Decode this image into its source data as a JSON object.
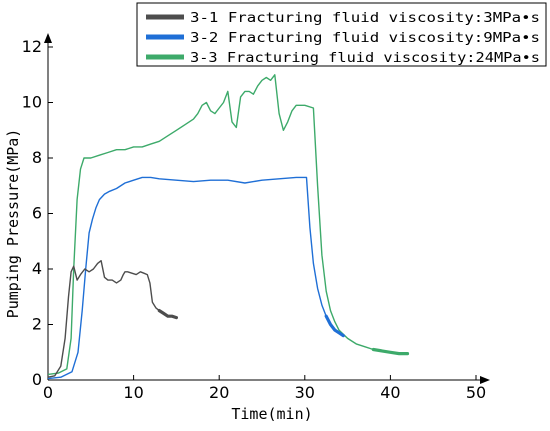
{
  "chart_data": {
    "type": "line",
    "xlabel": "Time(min)",
    "ylabel": "Pumping Pressure(MPa)",
    "xlim": [
      0,
      50
    ],
    "ylim": [
      0,
      12
    ],
    "xticks": [
      "0",
      "10",
      "20",
      "30",
      "40",
      "50"
    ],
    "yticks": [
      "0",
      "2",
      "4",
      "6",
      "8",
      "10",
      "12"
    ],
    "grid": false,
    "legend_position": "top-right",
    "series": [
      {
        "name": "3-1 Fracturing fluid viscosity:3MPa•s",
        "color": "#4d4d4d",
        "x": [
          0,
          0.8,
          1.5,
          2.0,
          2.4,
          2.7,
          3.0,
          3.4,
          3.8,
          4.3,
          4.8,
          5.3,
          5.8,
          6.2,
          6.6,
          7.0,
          7.5,
          8.0,
          8.5,
          8.8,
          9.0,
          9.3,
          9.8,
          10.3,
          10.8,
          11.2,
          11.6,
          11.9,
          12.2,
          12.6,
          13.0,
          13.5,
          14.0,
          14.5,
          15.0
        ],
        "y": [
          0.1,
          0.15,
          0.5,
          1.5,
          3.0,
          3.9,
          4.1,
          3.6,
          3.8,
          4.0,
          3.9,
          4.0,
          4.2,
          4.3,
          3.7,
          3.6,
          3.6,
          3.5,
          3.6,
          3.8,
          3.9,
          3.9,
          3.85,
          3.8,
          3.9,
          3.85,
          3.8,
          3.5,
          2.8,
          2.6,
          2.5,
          2.4,
          2.3,
          2.3,
          2.25
        ]
      },
      {
        "name": "3-2 Fracturing fluid viscosity:9MPa•s",
        "color": "#1f6fd6",
        "x": [
          0,
          1.5,
          2.8,
          3.5,
          4.0,
          4.4,
          4.8,
          5.2,
          5.6,
          6.0,
          6.6,
          7.2,
          8.0,
          9.0,
          10.0,
          11.0,
          12.0,
          13.0,
          15.0,
          17.0,
          19.0,
          21.0,
          23.0,
          25.0,
          27.0,
          29.0,
          30.2,
          30.6,
          31.0,
          31.5,
          32.0,
          32.5,
          33.0,
          33.5,
          34.0,
          34.5
        ],
        "y": [
          0.05,
          0.1,
          0.3,
          1.0,
          2.5,
          4.0,
          5.3,
          5.8,
          6.2,
          6.5,
          6.7,
          6.8,
          6.9,
          7.1,
          7.2,
          7.3,
          7.3,
          7.25,
          7.2,
          7.15,
          7.2,
          7.2,
          7.1,
          7.2,
          7.25,
          7.3,
          7.3,
          5.5,
          4.2,
          3.3,
          2.7,
          2.3,
          2.0,
          1.8,
          1.7,
          1.6
        ]
      },
      {
        "name": "3-3 Fracturing fluid viscosity:24MPa•s",
        "color": "#3daa6a",
        "x": [
          0,
          1.2,
          2.2,
          2.7,
          3.0,
          3.4,
          3.8,
          4.2,
          5.0,
          6.0,
          7.0,
          8.0,
          9.0,
          10.0,
          11.0,
          12.0,
          13.0,
          14.0,
          15.0,
          16.0,
          17.0,
          17.5,
          18.0,
          18.5,
          19.0,
          19.5,
          20.0,
          20.5,
          21.0,
          21.5,
          22.0,
          22.5,
          23.0,
          23.5,
          24.0,
          24.5,
          25.0,
          25.5,
          26.0,
          26.5,
          27.0,
          27.5,
          28.0,
          28.5,
          29.0,
          30.0,
          31.0,
          31.5,
          32.0,
          32.5,
          33.0,
          33.5,
          34.0,
          35.0,
          36.0,
          37.0,
          38.0,
          39.0,
          40.0,
          41.0,
          42.0
        ],
        "y": [
          0.2,
          0.25,
          0.4,
          1.5,
          4.0,
          6.5,
          7.6,
          8.0,
          8.0,
          8.1,
          8.2,
          8.3,
          8.3,
          8.4,
          8.4,
          8.5,
          8.6,
          8.8,
          9.0,
          9.2,
          9.4,
          9.6,
          9.9,
          10.0,
          9.7,
          9.6,
          9.8,
          10.0,
          10.4,
          9.3,
          9.1,
          10.2,
          10.4,
          10.4,
          10.3,
          10.6,
          10.8,
          10.9,
          10.8,
          11.0,
          9.6,
          9.0,
          9.3,
          9.7,
          9.9,
          9.9,
          9.8,
          7.0,
          4.5,
          3.2,
          2.5,
          2.1,
          1.8,
          1.5,
          1.3,
          1.2,
          1.1,
          1.05,
          1.0,
          0.95,
          0.95
        ]
      }
    ]
  }
}
